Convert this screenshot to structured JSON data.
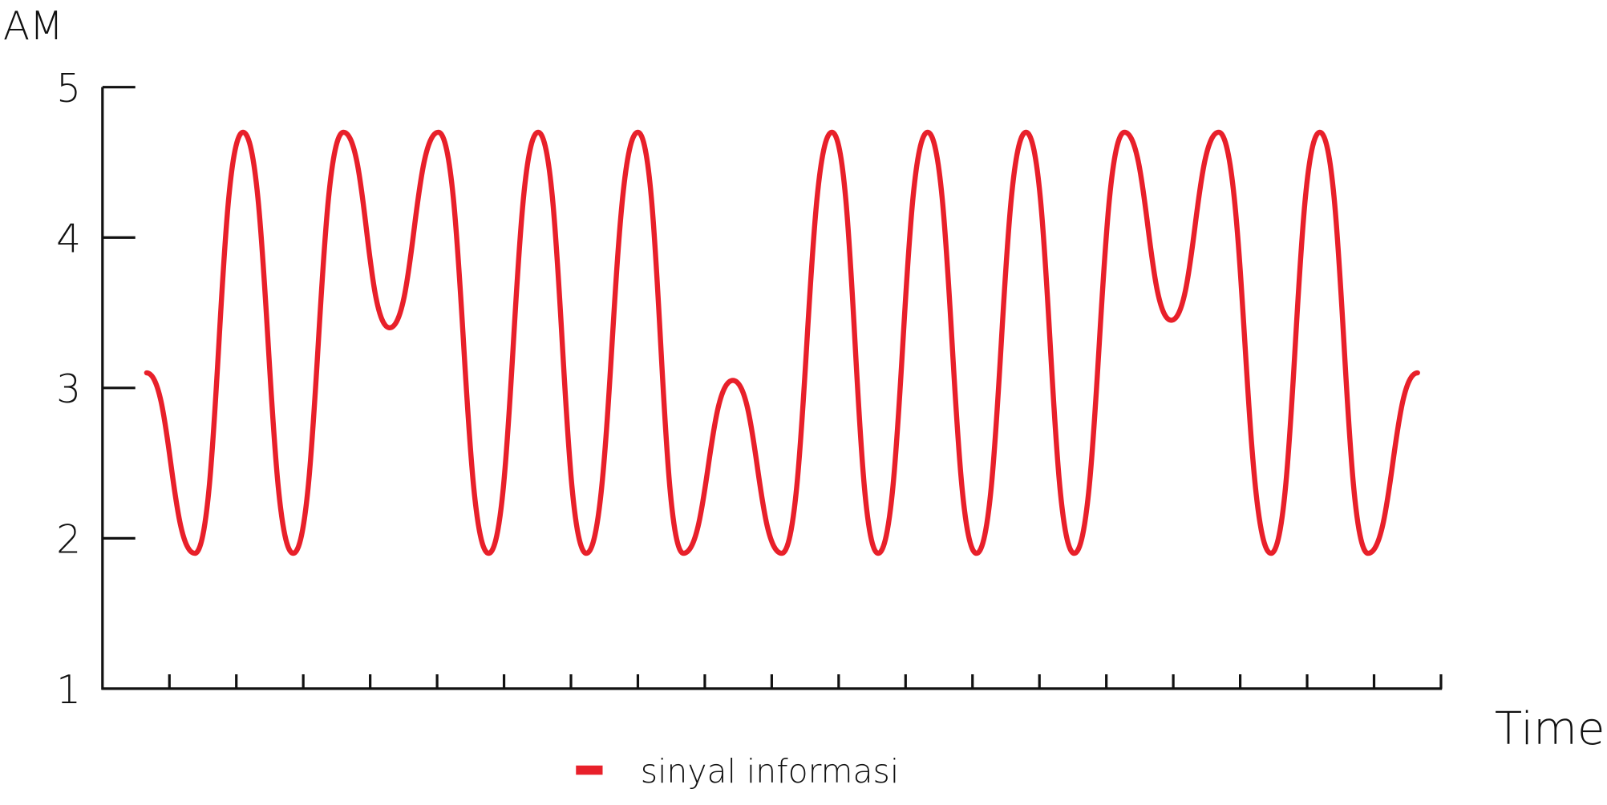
{
  "chart_data": {
    "type": "line",
    "ylabel": "AM",
    "xlabel": "Time",
    "x": [
      0.66,
      1.38,
      2.1,
      2.85,
      3.6,
      4.29,
      5.02,
      5.77,
      6.51,
      7.23,
      8.0,
      8.68,
      9.42,
      10.15,
      10.9,
      11.59,
      12.33,
      13.06,
      13.8,
      14.52,
      15.27,
      15.97,
      16.68,
      17.46,
      18.19,
      18.91,
      19.65
    ],
    "series": [
      {
        "name": "sinyal informasi",
        "color": "#e8202a",
        "values": [
          3.1,
          1.9,
          4.7,
          1.9,
          4.7,
          3.4,
          4.7,
          1.9,
          4.7,
          1.9,
          4.7,
          1.9,
          3.05,
          1.9,
          4.7,
          1.9,
          4.7,
          1.9,
          4.7,
          1.9,
          4.7,
          3.45,
          4.7,
          1.9,
          4.7,
          1.9,
          3.1
        ]
      }
    ],
    "xlim": [
      0,
      20
    ],
    "xticks": [
      1,
      2,
      3,
      4,
      5,
      6,
      7,
      8,
      9,
      10,
      11,
      12,
      13,
      14,
      15,
      16,
      17,
      18,
      19,
      20
    ],
    "ylim": [
      1,
      5
    ],
    "yticks": [
      1,
      2,
      3,
      4,
      5
    ],
    "legend": "bottom"
  }
}
